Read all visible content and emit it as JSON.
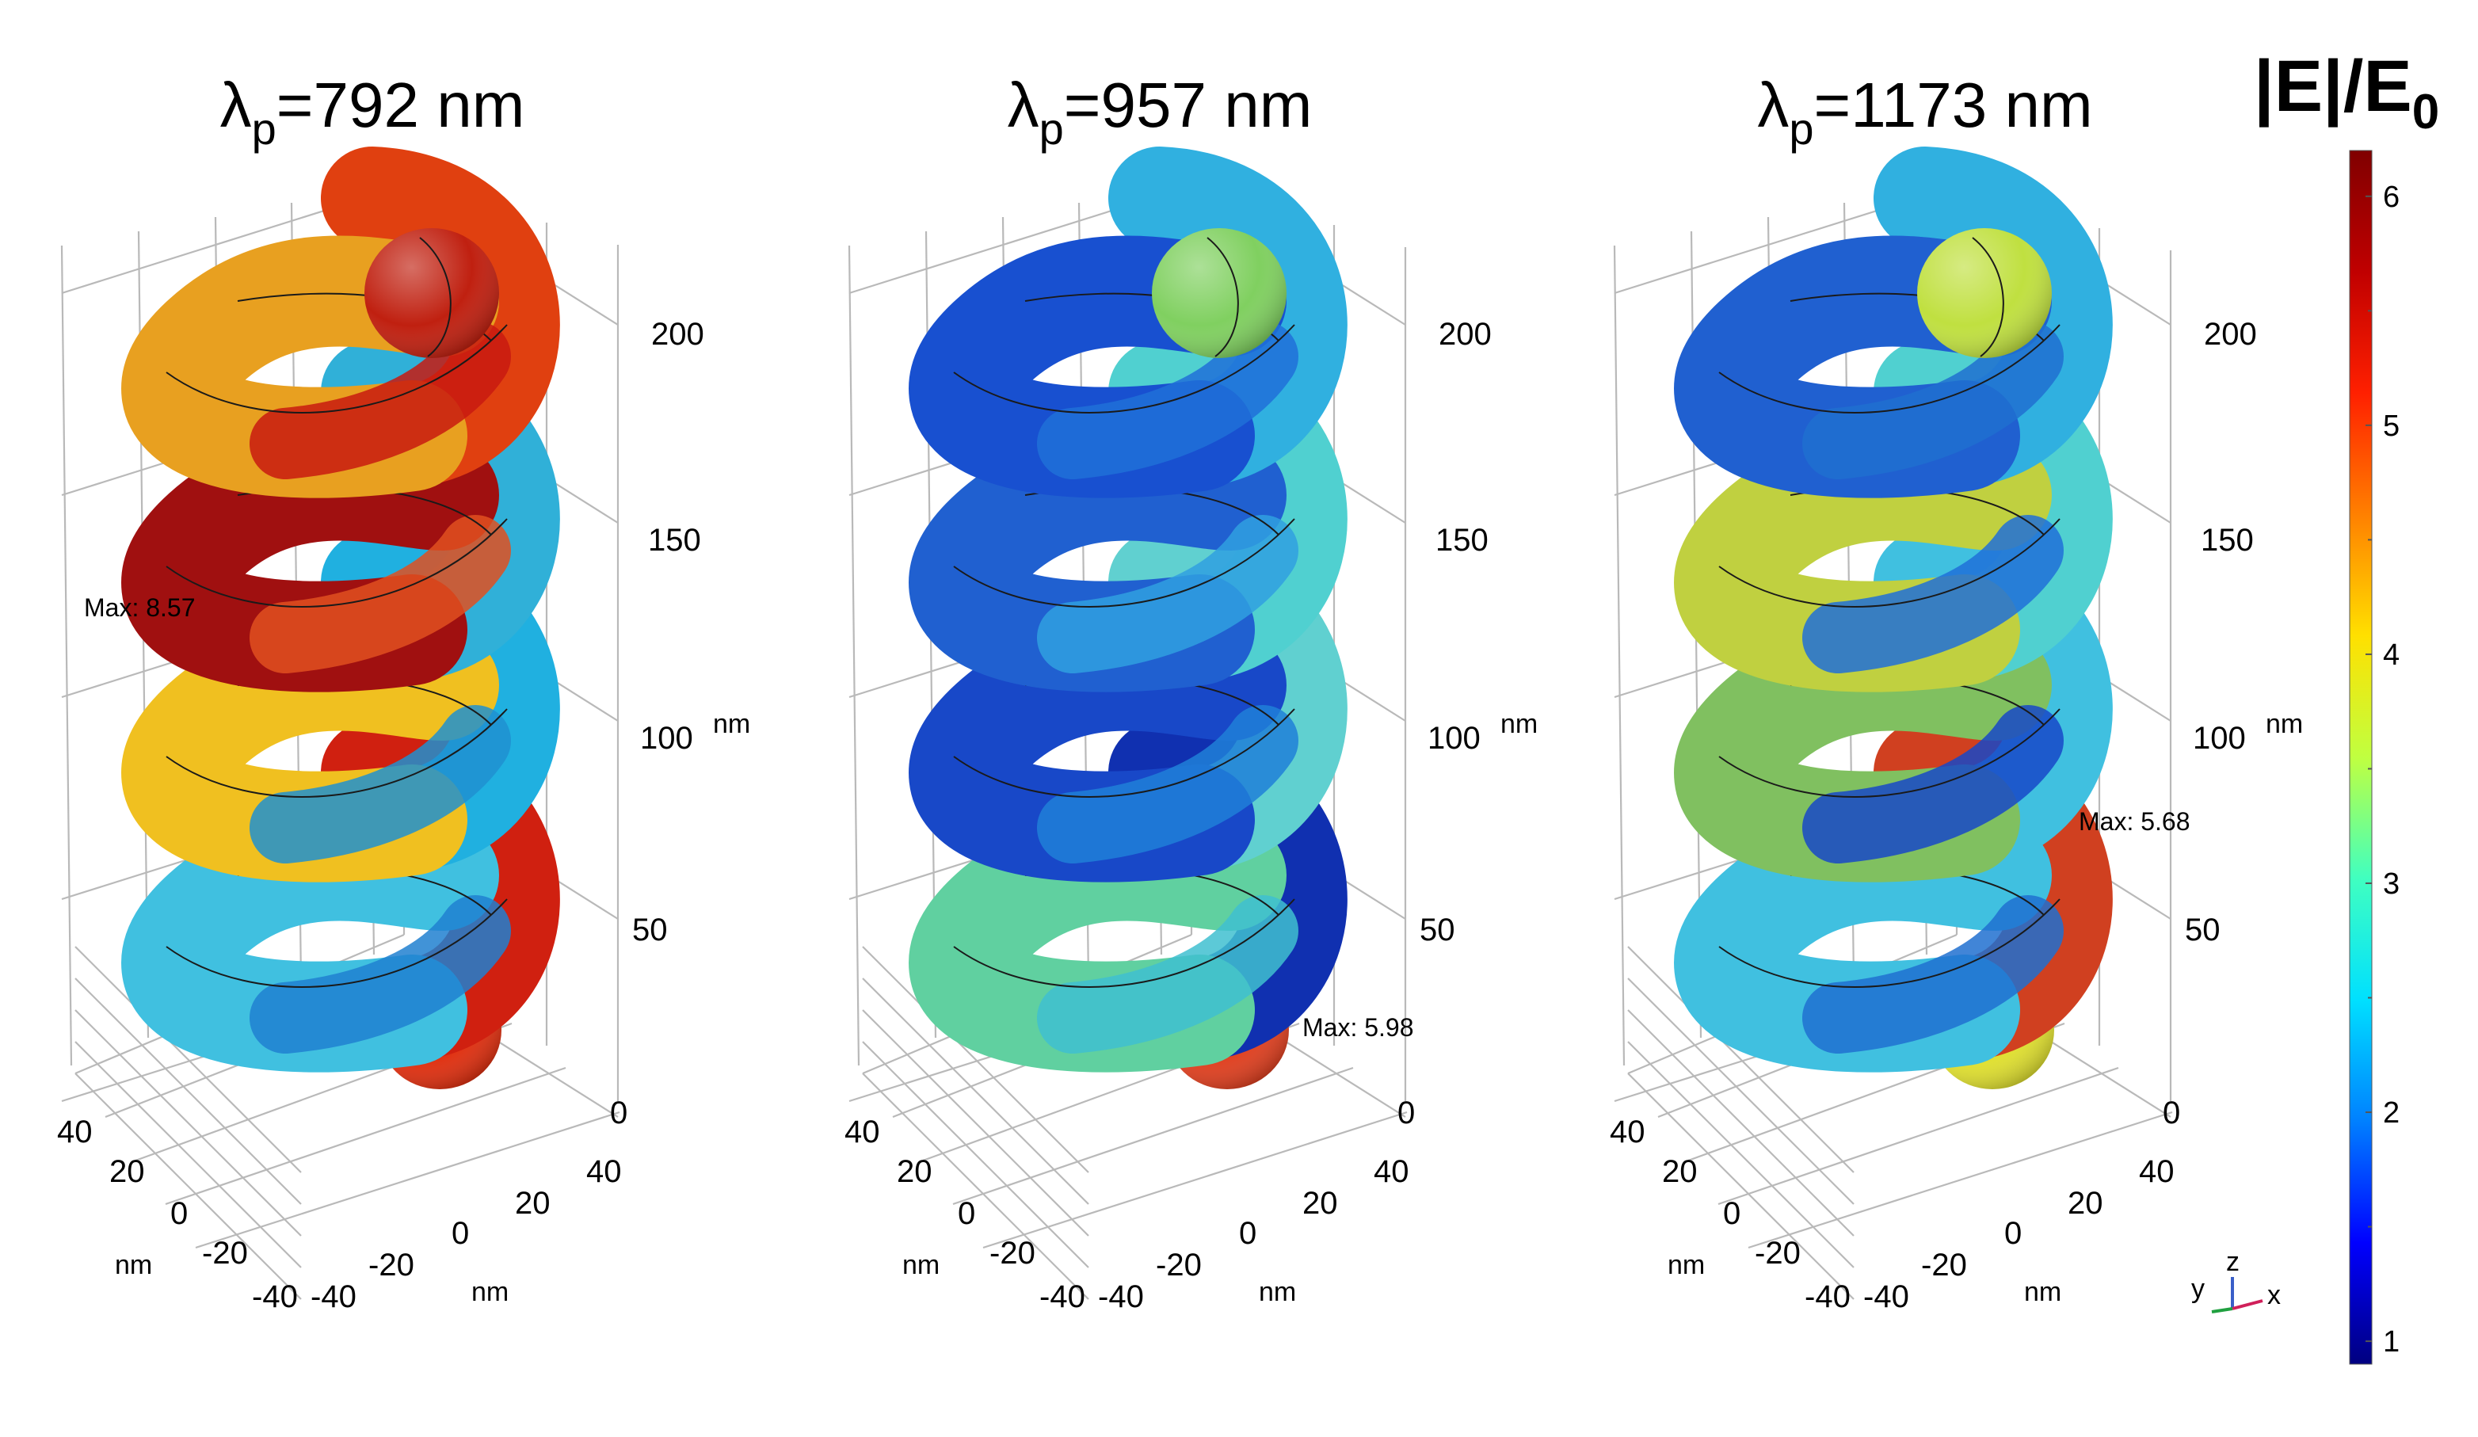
{
  "panels": [
    {
      "id": "p1",
      "title_symbol": "λ",
      "title_sub": "p",
      "title_rest": "=792 nm",
      "max_label": "Max: 8.57",
      "z_ticks": [
        "0",
        "50",
        "100",
        "150",
        "200"
      ],
      "x_ticks": [
        "40",
        "20",
        "0",
        "-20",
        "-40"
      ],
      "y_ticks": [
        "-40",
        "-20",
        "0",
        "20",
        "40"
      ],
      "unit_z": "nm",
      "unit_x": "nm",
      "unit_y": "nm",
      "colors": [
        "#c02010",
        "#e04010",
        "#e8a020",
        "#c81a10",
        "#30b0d8",
        "#a01010",
        "#e05020",
        "#20b0e0",
        "#f0c020",
        "#2090d0",
        "#d02010",
        "#40c0e0",
        "#2080d0",
        "#e03010"
      ]
    },
    {
      "id": "p2",
      "title_symbol": "λ",
      "title_sub": "p",
      "title_rest": "=957 nm",
      "max_label": "Max: 5.98",
      "z_ticks": [
        "0",
        "50",
        "100",
        "150",
        "200"
      ],
      "x_ticks": [
        "40",
        "20",
        "0",
        "-20",
        "-40"
      ],
      "y_ticks": [
        "-40",
        "-20",
        "0",
        "20",
        "40"
      ],
      "unit_z": "nm",
      "unit_x": "nm",
      "unit_y": "nm",
      "colors": [
        "#80d060",
        "#30b0e0",
        "#1850d0",
        "#2070d8",
        "#50d0d0",
        "#2060d0",
        "#30a0e0",
        "#60d0d0",
        "#1848c8",
        "#2080d8",
        "#1030b0",
        "#60d0a0",
        "#40c0d0",
        "#e04020"
      ]
    },
    {
      "id": "p3",
      "title_symbol": "λ",
      "title_sub": "p",
      "title_rest": "=1173 nm",
      "max_label": "Max: 5.68",
      "z_ticks": [
        "0",
        "50",
        "100",
        "150",
        "200"
      ],
      "x_ticks": [
        "40",
        "20",
        "0",
        "-20",
        "-40"
      ],
      "y_ticks": [
        "-40",
        "-20",
        "0",
        "20",
        "40"
      ],
      "unit_z": "nm",
      "unit_x": "nm",
      "unit_y": "nm",
      "colors": [
        "#c0e040",
        "#30b0e0",
        "#2060d0",
        "#2070d0",
        "#50d0d0",
        "#c0d040",
        "#2070d8",
        "#40c0e0",
        "#80c060",
        "#1848c8",
        "#d04020",
        "#40c0e0",
        "#2070d0",
        "#e0e030"
      ]
    }
  ],
  "colorbar": {
    "title_main": "|E|/E",
    "title_sub": "0",
    "ticks": [
      "1",
      "2",
      "3",
      "4",
      "5",
      "6"
    ],
    "colormap": [
      "#000080",
      "#0000ff",
      "#0080ff",
      "#00e0ff",
      "#40ffc0",
      "#c0ff40",
      "#ffe000",
      "#ff8000",
      "#ff2000",
      "#c00000",
      "#800000"
    ]
  },
  "triad": {
    "z": "z",
    "y": "y",
    "x": "x"
  }
}
